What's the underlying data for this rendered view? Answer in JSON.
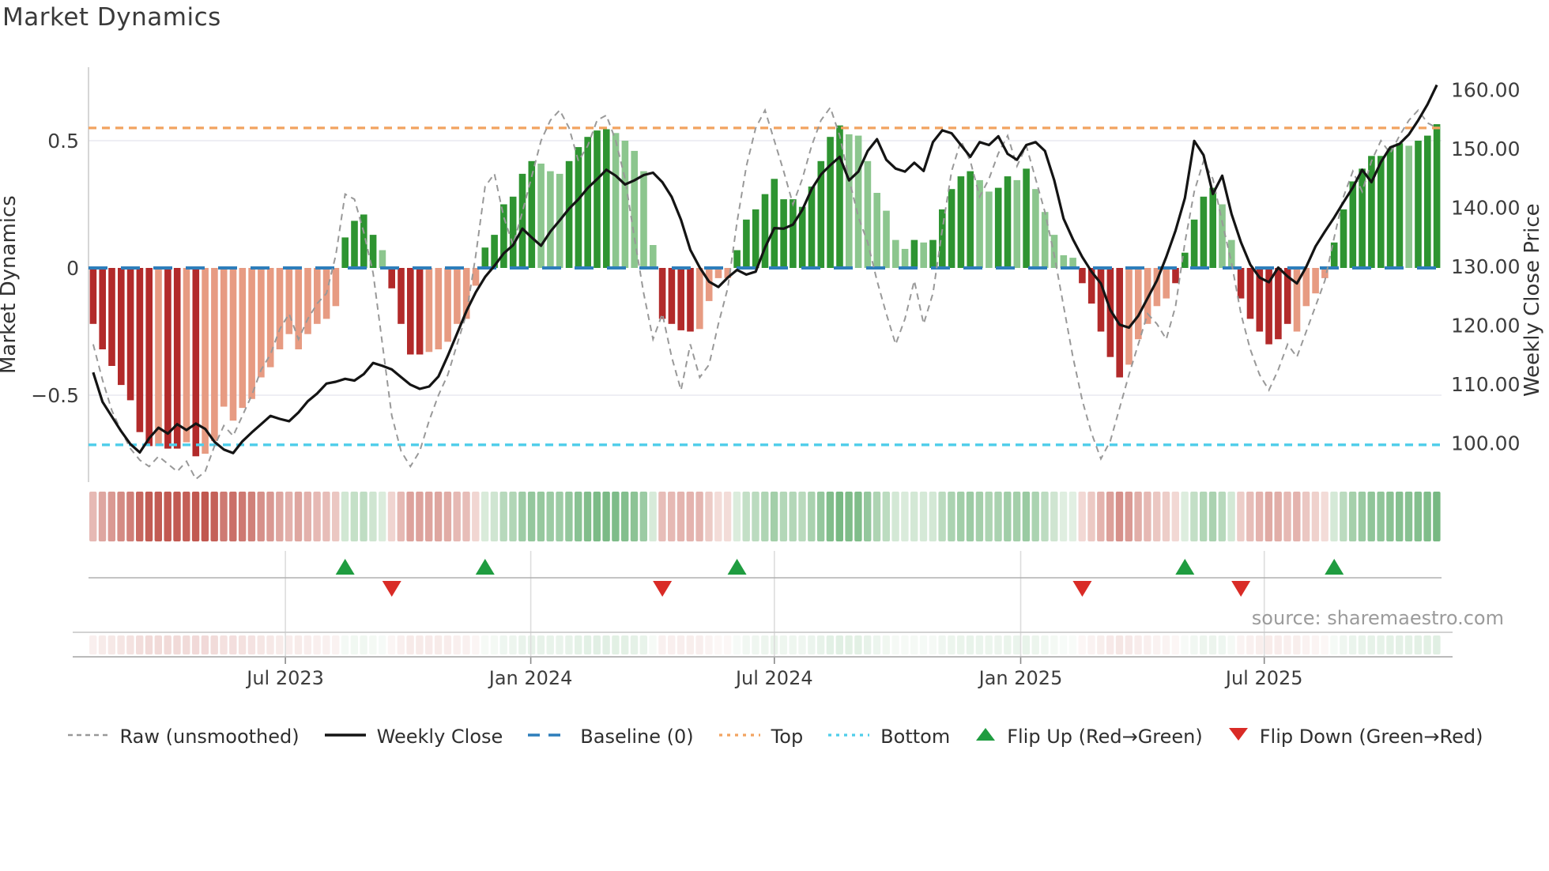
{
  "title": "Market Dynamics",
  "source": "source: sharemaestro.com",
  "axes": {
    "left_label": "Market Dynamics",
    "right_label": "Weekly Close Price",
    "left_ticks": [
      {
        "label": "0.5",
        "value": 0.5
      },
      {
        "label": "0",
        "value": 0.0
      },
      {
        "label": "−0.5",
        "value": -0.5
      }
    ],
    "right_ticks": [
      {
        "label": "160.00",
        "value": 160
      },
      {
        "label": "150.00",
        "value": 150
      },
      {
        "label": "140.00",
        "value": 140
      },
      {
        "label": "130.00",
        "value": 130
      },
      {
        "label": "120.00",
        "value": 120
      },
      {
        "label": "110.00",
        "value": 110
      },
      {
        "label": "100.00",
        "value": 100
      }
    ],
    "x_ticks": [
      {
        "label": "Jul 2023",
        "week": 21.1
      },
      {
        "label": "Jan 2024",
        "week": 47.4
      },
      {
        "label": "Jul 2024",
        "week": 73.5
      },
      {
        "label": "Jan 2025",
        "week": 99.9
      },
      {
        "label": "Jul 2025",
        "week": 126.0
      }
    ]
  },
  "legend": {
    "items": [
      {
        "key": "raw",
        "label": "Raw (unsmoothed)"
      },
      {
        "key": "close",
        "label": "Weekly Close"
      },
      {
        "key": "baseline",
        "label": "Baseline (0)"
      },
      {
        "key": "top",
        "label": "Top"
      },
      {
        "key": "bottom",
        "label": "Bottom"
      },
      {
        "key": "flip-up",
        "label": "Flip Up (Red→Green)"
      },
      {
        "key": "flip-down",
        "label": "Flip Down (Green→Red)"
      }
    ]
  },
  "colors": {
    "strong_green": "#2e9431",
    "light_green": "#8cc68e",
    "strong_red": "#b22a2a",
    "light_red": "#e79b82",
    "baseline_blue": "#2e7ebb",
    "top_orange": "#f2a360",
    "bottom_cyan": "#4ecdea",
    "raw_gray": "#999999",
    "close_black": "#141414",
    "flip_up_green": "#1f9c40",
    "flip_down_red": "#d92b26",
    "grid": "#e9e9f0",
    "axis_line": "#b0b0b0",
    "tick_text": "#3d3d3d"
  },
  "chart_data": {
    "type": "bar",
    "description": "Weekly oscillator bars (left axis) with weekly close price line (right axis), raw unsmoothed oscillator, reference lines, color heatmap strip and red/green flip markers",
    "x_unit": "weeks (Feb 2023 - Nov 2025)",
    "ylabel_left": "Market Dynamics",
    "ylabel_right": "Weekly Close Price",
    "ylim_left": [
      -0.9,
      0.78
    ],
    "ylim_right": [
      96,
      163
    ],
    "reference_lines": {
      "baseline": 0.0,
      "top": 0.55,
      "bottom": -0.695
    },
    "series": {
      "oscillator": [
        -0.22,
        -0.32,
        -0.385,
        -0.46,
        -0.52,
        -0.645,
        -0.7,
        -0.7,
        -0.71,
        -0.71,
        -0.685,
        -0.74,
        -0.73,
        -0.68,
        -0.545,
        -0.6,
        -0.55,
        -0.515,
        -0.43,
        -0.39,
        -0.32,
        -0.26,
        -0.32,
        -0.26,
        -0.22,
        -0.2,
        -0.15,
        0.12,
        0.185,
        0.21,
        0.13,
        0.07,
        -0.08,
        -0.22,
        -0.34,
        -0.34,
        -0.33,
        -0.32,
        -0.29,
        -0.22,
        -0.2,
        -0.07,
        0.08,
        0.13,
        0.25,
        0.28,
        0.37,
        0.42,
        0.41,
        0.38,
        0.37,
        0.42,
        0.475,
        0.515,
        0.54,
        0.545,
        0.53,
        0.5,
        0.46,
        0.38,
        0.09,
        -0.2,
        -0.22,
        -0.245,
        -0.25,
        -0.24,
        -0.13,
        -0.04,
        -0.04,
        0.07,
        0.19,
        0.23,
        0.29,
        0.35,
        0.27,
        0.27,
        0.24,
        0.32,
        0.42,
        0.515,
        0.56,
        0.525,
        0.52,
        0.42,
        0.295,
        0.225,
        0.11,
        0.075,
        0.11,
        0.1,
        0.11,
        0.23,
        0.31,
        0.36,
        0.38,
        0.345,
        0.3,
        0.315,
        0.36,
        0.345,
        0.39,
        0.31,
        0.22,
        0.13,
        0.05,
        0.04,
        -0.06,
        -0.14,
        -0.25,
        -0.35,
        -0.43,
        -0.38,
        -0.28,
        -0.22,
        -0.15,
        -0.12,
        -0.06,
        0.06,
        0.19,
        0.28,
        0.315,
        0.25,
        0.11,
        -0.12,
        -0.2,
        -0.25,
        -0.3,
        -0.28,
        -0.22,
        -0.25,
        -0.15,
        -0.1,
        -0.04,
        0.1,
        0.23,
        0.34,
        0.39,
        0.44,
        0.44,
        0.47,
        0.49,
        0.48,
        0.5,
        0.52,
        0.565
      ],
      "shade": "DDDDDDDLDDLDLLLLLLLLLLLLLLLDDDDLDDDDLLLLLLDDDDDDLLLDDDDDLLLLLDDDDLLLLDDDDDDDDDDDDLLLLLLLDLDDDDDLLDDLDLLLLLDDDDDLLLLLDDDDDLLDDDDDDLLLLDDDDDDDDLDDD",
      "weekly_close": [
        112.0,
        107.0,
        104.5,
        102.0,
        99.8,
        98.4,
        100.8,
        102.6,
        101.6,
        103.2,
        102.2,
        103.3,
        102.4,
        100.2,
        98.9,
        98.3,
        100.3,
        101.8,
        103.2,
        104.6,
        104.1,
        103.7,
        105.2,
        107.1,
        108.4,
        110.1,
        110.4,
        110.9,
        110.6,
        111.7,
        113.6,
        113.1,
        112.5,
        111.2,
        109.9,
        109.2,
        109.6,
        111.3,
        114.8,
        118.6,
        122.4,
        125.6,
        128.2,
        130.1,
        132.2,
        133.6,
        136.4,
        134.9,
        133.5,
        135.9,
        137.8,
        139.8,
        141.4,
        143.3,
        144.8,
        146.4,
        145.4,
        143.9,
        144.6,
        145.5,
        145.9,
        144.3,
        141.8,
        137.9,
        132.8,
        129.8,
        127.4,
        126.5,
        128.1,
        129.4,
        128.6,
        129.1,
        133.2,
        136.5,
        136.4,
        137.1,
        139.6,
        143.1,
        145.6,
        147.2,
        148.6,
        144.6,
        146.1,
        149.6,
        151.6,
        148.1,
        146.6,
        146.1,
        147.6,
        146.2,
        151.1,
        153.1,
        152.6,
        150.6,
        148.6,
        151.1,
        150.6,
        152.1,
        149.1,
        148.1,
        150.6,
        151.1,
        149.6,
        144.6,
        138.1,
        134.6,
        131.6,
        129.1,
        127.1,
        122.6,
        120.1,
        119.6,
        121.6,
        124.6,
        127.6,
        131.6,
        136.1,
        141.6,
        151.3,
        148.9,
        142.3,
        145.4,
        138.9,
        134.1,
        130.3,
        128.1,
        127.3,
        129.8,
        128.3,
        127.1,
        129.9,
        133.4,
        135.9,
        138.3,
        140.9,
        143.4,
        146.4,
        144.3,
        147.7,
        150.2,
        150.8,
        152.4,
        154.8,
        157.5,
        160.8
      ],
      "raw": [
        -0.3,
        -0.44,
        -0.56,
        -0.64,
        -0.71,
        -0.755,
        -0.78,
        -0.74,
        -0.77,
        -0.8,
        -0.76,
        -0.83,
        -0.8,
        -0.7,
        -0.62,
        -0.66,
        -0.58,
        -0.5,
        -0.4,
        -0.34,
        -0.24,
        -0.18,
        -0.28,
        -0.2,
        -0.14,
        -0.1,
        0.05,
        0.29,
        0.27,
        0.14,
        -0.02,
        -0.3,
        -0.58,
        -0.72,
        -0.78,
        -0.72,
        -0.6,
        -0.5,
        -0.42,
        -0.3,
        -0.18,
        0.05,
        0.32,
        0.37,
        0.2,
        0.09,
        0.22,
        0.36,
        0.5,
        0.58,
        0.62,
        0.55,
        0.42,
        0.48,
        0.58,
        0.6,
        0.5,
        0.35,
        0.12,
        -0.1,
        -0.28,
        -0.18,
        -0.35,
        -0.48,
        -0.3,
        -0.43,
        -0.38,
        -0.22,
        -0.08,
        0.18,
        0.4,
        0.55,
        0.62,
        0.5,
        0.38,
        0.25,
        0.35,
        0.48,
        0.58,
        0.63,
        0.52,
        0.35,
        0.2,
        0.1,
        -0.05,
        -0.18,
        -0.3,
        -0.2,
        -0.05,
        -0.22,
        -0.1,
        0.15,
        0.38,
        0.5,
        0.42,
        0.28,
        0.35,
        0.45,
        0.52,
        0.4,
        0.48,
        0.35,
        0.22,
        0.05,
        -0.15,
        -0.35,
        -0.52,
        -0.65,
        -0.75,
        -0.68,
        -0.55,
        -0.42,
        -0.3,
        -0.18,
        -0.22,
        -0.28,
        -0.15,
        0.1,
        0.3,
        0.42,
        0.35,
        0.18,
        0.02,
        -0.18,
        -0.32,
        -0.42,
        -0.48,
        -0.4,
        -0.3,
        -0.35,
        -0.25,
        -0.15,
        -0.05,
        0.12,
        0.28,
        0.38,
        0.3,
        0.42,
        0.5,
        0.45,
        0.52,
        0.58,
        0.62,
        0.57,
        0.55
      ]
    },
    "markers": {
      "flip_up_weeks": [
        27,
        42,
        69,
        117,
        133
      ],
      "flip_down_weeks": [
        32,
        61,
        106,
        123
      ]
    },
    "heatmap": "strip below main plot; cell color = sign/intensity of oscillator value (red negative, green positive); a second very faint copy sits above the date axis"
  }
}
